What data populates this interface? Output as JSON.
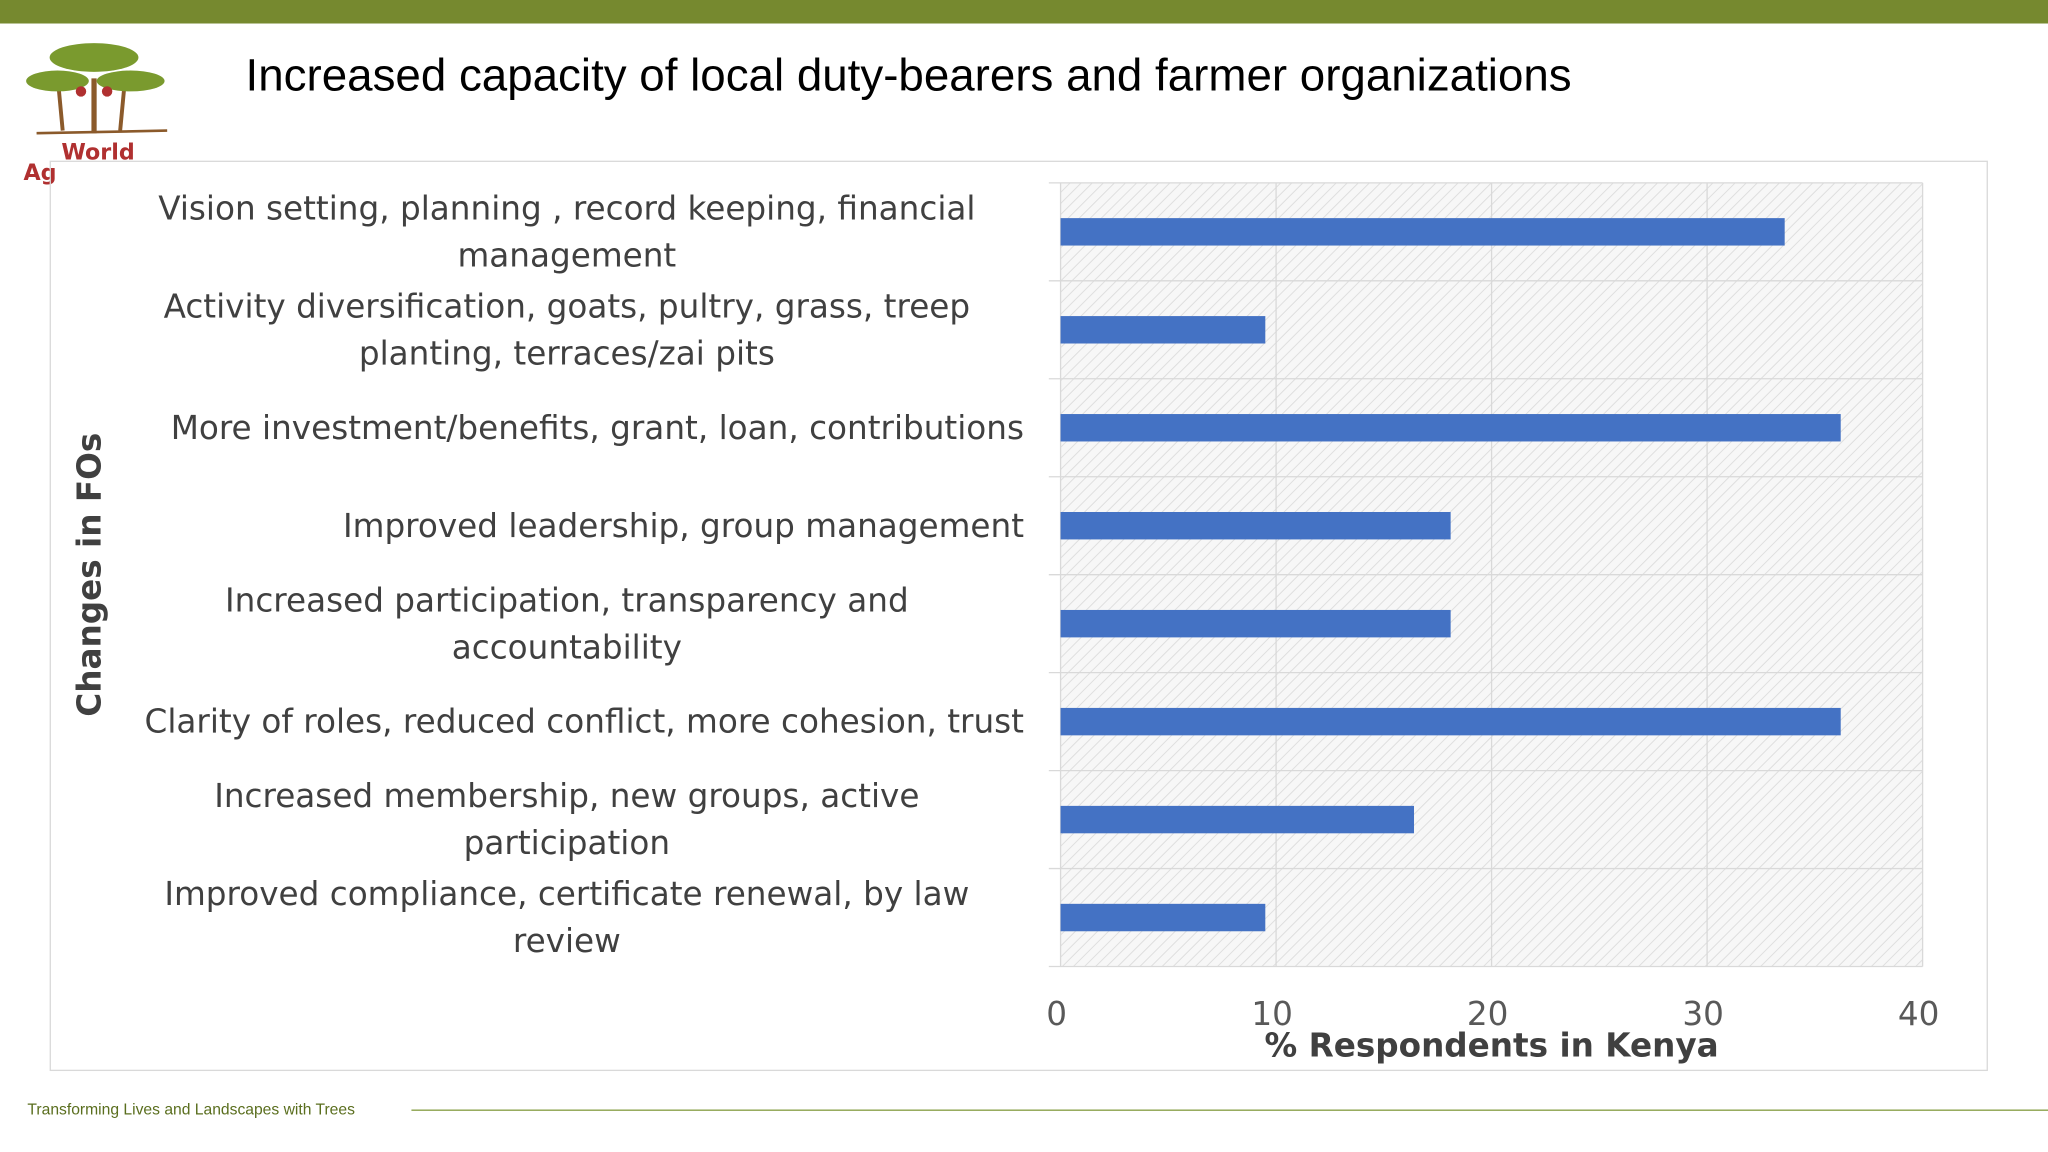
{
  "logo": {
    "name": "World",
    "fragment": "Ag"
  },
  "footer": "Transforming Lives and Landscapes with Trees",
  "chart_data": {
    "type": "bar",
    "orientation": "horizontal",
    "title": "Increased capacity of local duty-bearers and farmer organizations",
    "x_label": "% Respondents in Kenya",
    "y_label": "Changes in FOs",
    "categories": [
      "Vision setting, planning , record keeping, financial management",
      "Activity diversification, goats, pultry, grass, treep planting, terraces/zai pits",
      "More investment/benefits, grant, loan, contributions",
      "Improved leadership, group management",
      "Increased participation, transparency and accountability",
      "Clarity of roles, reduced conflict, more cohesion, trust",
      "Increased membership, new groups, active participation",
      "Improved compliance, certificate renewal, by law review"
    ],
    "values": [
      33.6,
      9.5,
      36.2,
      18.1,
      18.1,
      36.2,
      16.4,
      9.5
    ],
    "color": "#4472c4",
    "xlim": [
      0,
      40
    ],
    "xticks": [
      0,
      10,
      20,
      30,
      40
    ],
    "grid": true
  }
}
